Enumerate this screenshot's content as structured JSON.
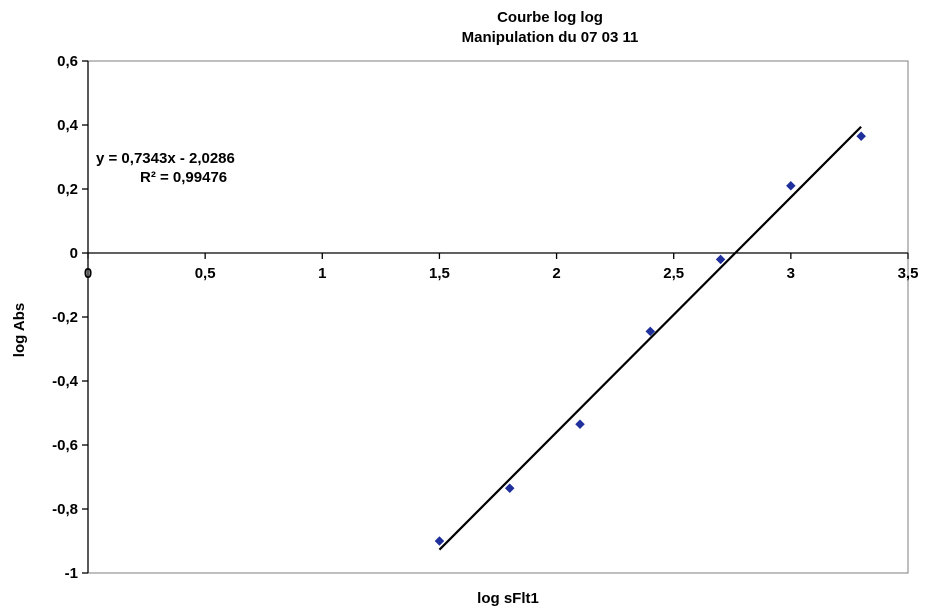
{
  "chart_data": {
    "type": "scatter",
    "title": "Courbe log log",
    "subtitle": "Manipulation du  07 03 11",
    "xlabel": "log sFlt1",
    "ylabel": "log Abs",
    "xlim": [
      0,
      3.5
    ],
    "ylim": [
      -1,
      0.6
    ],
    "x_ticks": [
      0,
      0.5,
      1,
      1.5,
      2,
      2.5,
      3,
      3.5
    ],
    "x_tick_labels": [
      "0",
      "0,5",
      "1",
      "1,5",
      "2",
      "2,5",
      "3",
      "3,5"
    ],
    "y_ticks": [
      0.6,
      0.4,
      0.2,
      0,
      -0.2,
      -0.4,
      -0.6,
      -0.8,
      -1
    ],
    "y_tick_labels": [
      "0,6",
      "0,4",
      "0,2",
      "0",
      "-0,2",
      "-0,4",
      "-0,6",
      "-0,8",
      "-1"
    ],
    "grid": false,
    "legend": "none",
    "series": [
      {
        "color": "#1f2f9c",
        "marker": "diamond",
        "points": [
          {
            "x": 1.5,
            "y": -0.9
          },
          {
            "x": 1.8,
            "y": -0.735
          },
          {
            "x": 2.1,
            "y": -0.535
          },
          {
            "x": 2.4,
            "y": -0.245
          },
          {
            "x": 2.7,
            "y": -0.02
          },
          {
            "x": 3.0,
            "y": 0.21
          },
          {
            "x": 3.3,
            "y": 0.365
          }
        ]
      }
    ],
    "trendline": {
      "slope": 0.7343,
      "intercept": -2.0286,
      "x_start": 1.5,
      "x_end": 3.3,
      "color": "#000000",
      "equation": "y = 0,7343x - 2,0286",
      "r_squared": "R² = 0,99476"
    }
  }
}
